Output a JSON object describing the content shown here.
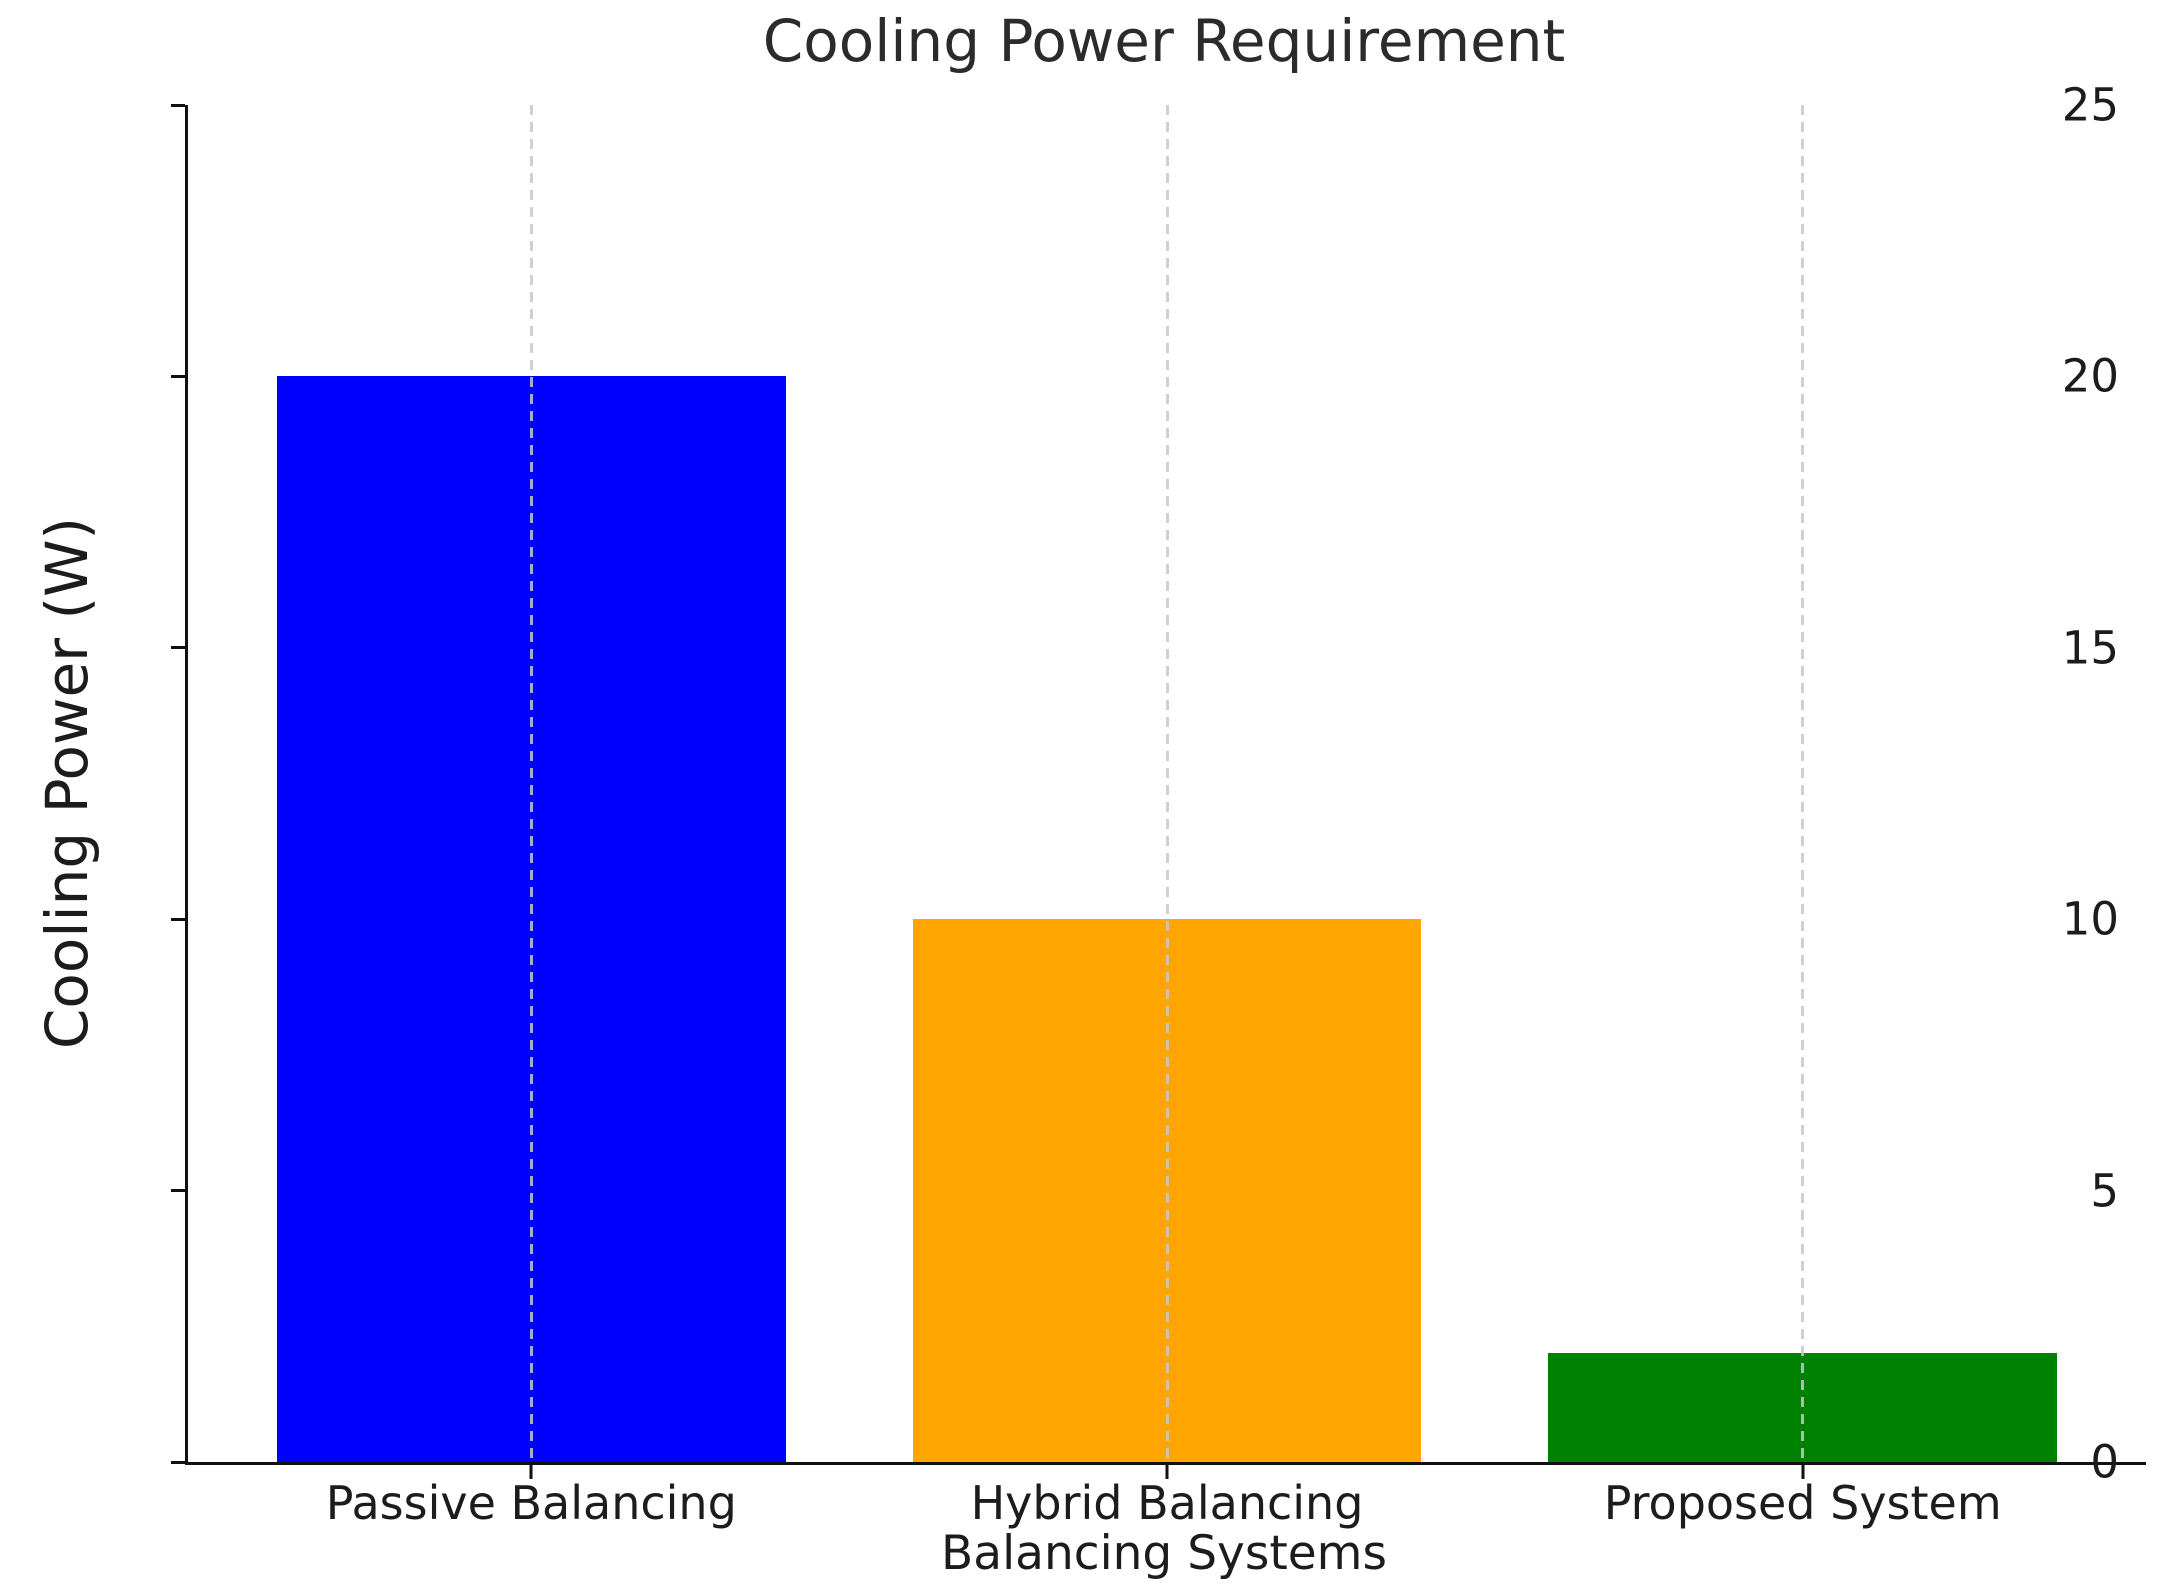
{
  "chart_data": {
    "type": "bar",
    "title": "Cooling Power Requirement",
    "xlabel": "Balancing Systems",
    "ylabel": "Cooling Power (W)",
    "categories": [
      "Passive Balancing",
      "Hybrid Balancing",
      "Proposed System"
    ],
    "values": [
      20,
      10,
      2
    ],
    "bar_colors": [
      "#0000ff",
      "#ffa500",
      "#008000"
    ],
    "ylim": [
      0,
      25
    ],
    "yticks": [
      0,
      5,
      10,
      15,
      20,
      25
    ],
    "xlim": [
      -0.54,
      2.54
    ],
    "bar_width": 0.8,
    "grid": "vertical dashed gridlines at each category center, drawn over bars",
    "legend_position": "none",
    "spines": [
      "left",
      "bottom"
    ]
  },
  "colors": {
    "background": "#ffffff",
    "spine": "#111111",
    "text": "#1c1c1c",
    "gridline": "#c8c8c8"
  }
}
